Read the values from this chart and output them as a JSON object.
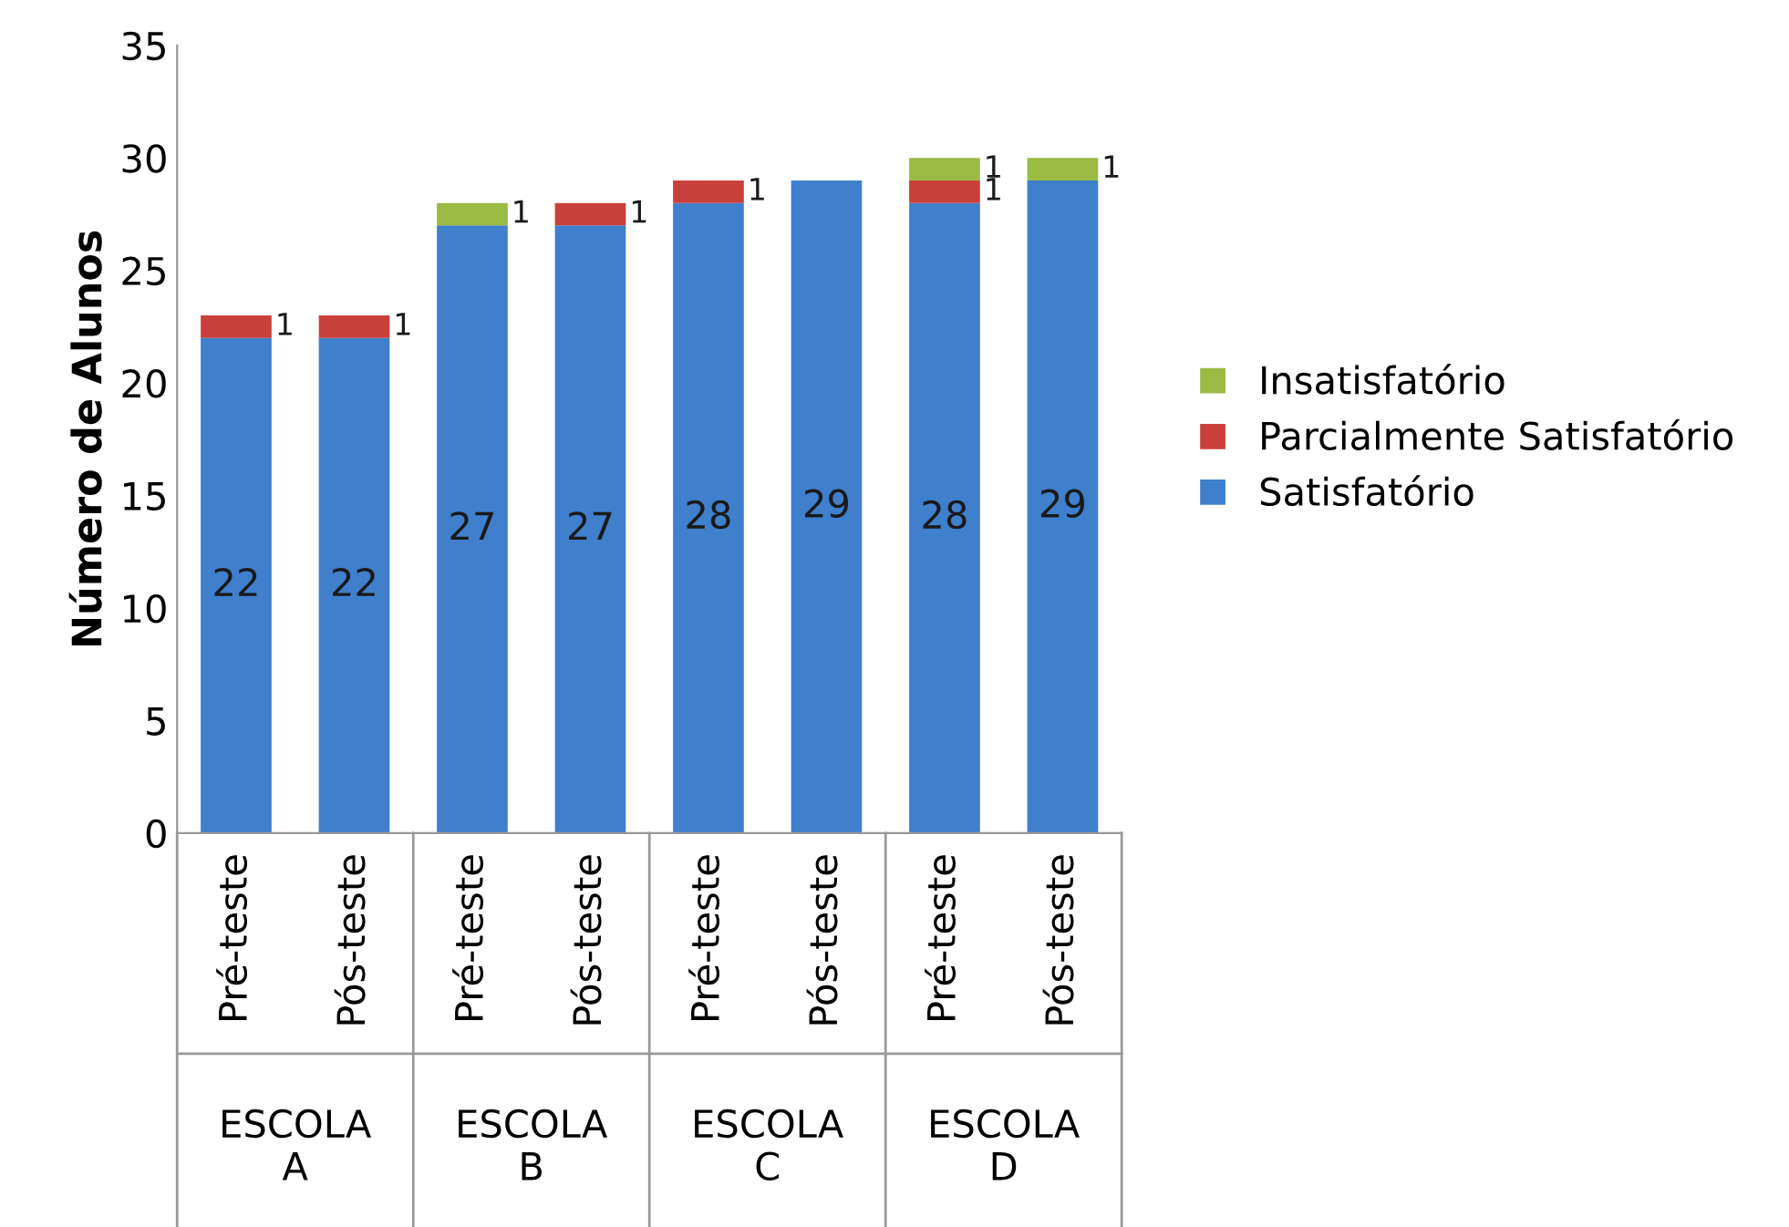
{
  "chart_data": {
    "type": "bar",
    "stacked": true,
    "ylabel": "Número de Alunos",
    "categories": [
      "Pré-teste",
      "Pós-teste",
      "Pré-teste",
      "Pós-teste",
      "Pré-teste",
      "Pós-teste",
      "Pré-teste",
      "Pós-teste"
    ],
    "series": [
      {
        "name": "Satisfatório",
        "color": "#3f7fcc",
        "values": [
          22,
          22,
          27,
          27,
          28,
          29,
          28,
          29
        ]
      },
      {
        "name": "Parcialmente Satisfatório",
        "color": "#c9403b",
        "values": [
          1,
          1,
          null,
          1,
          1,
          null,
          1,
          null
        ]
      },
      {
        "name": "Insatisfatório",
        "color": "#9bbb45",
        "values": [
          null,
          null,
          1,
          null,
          null,
          null,
          1,
          1
        ]
      }
    ],
    "annotations": [
      "ESCOLA A",
      "ESCOLA B",
      "ESCOLA C",
      "ESCOLA D"
    ],
    "ylim": [
      0,
      35
    ],
    "yticks": [
      0,
      5,
      10,
      15,
      20,
      25,
      30,
      35
    ],
    "grid": false,
    "legend": "right",
    "data_labels": true
  }
}
